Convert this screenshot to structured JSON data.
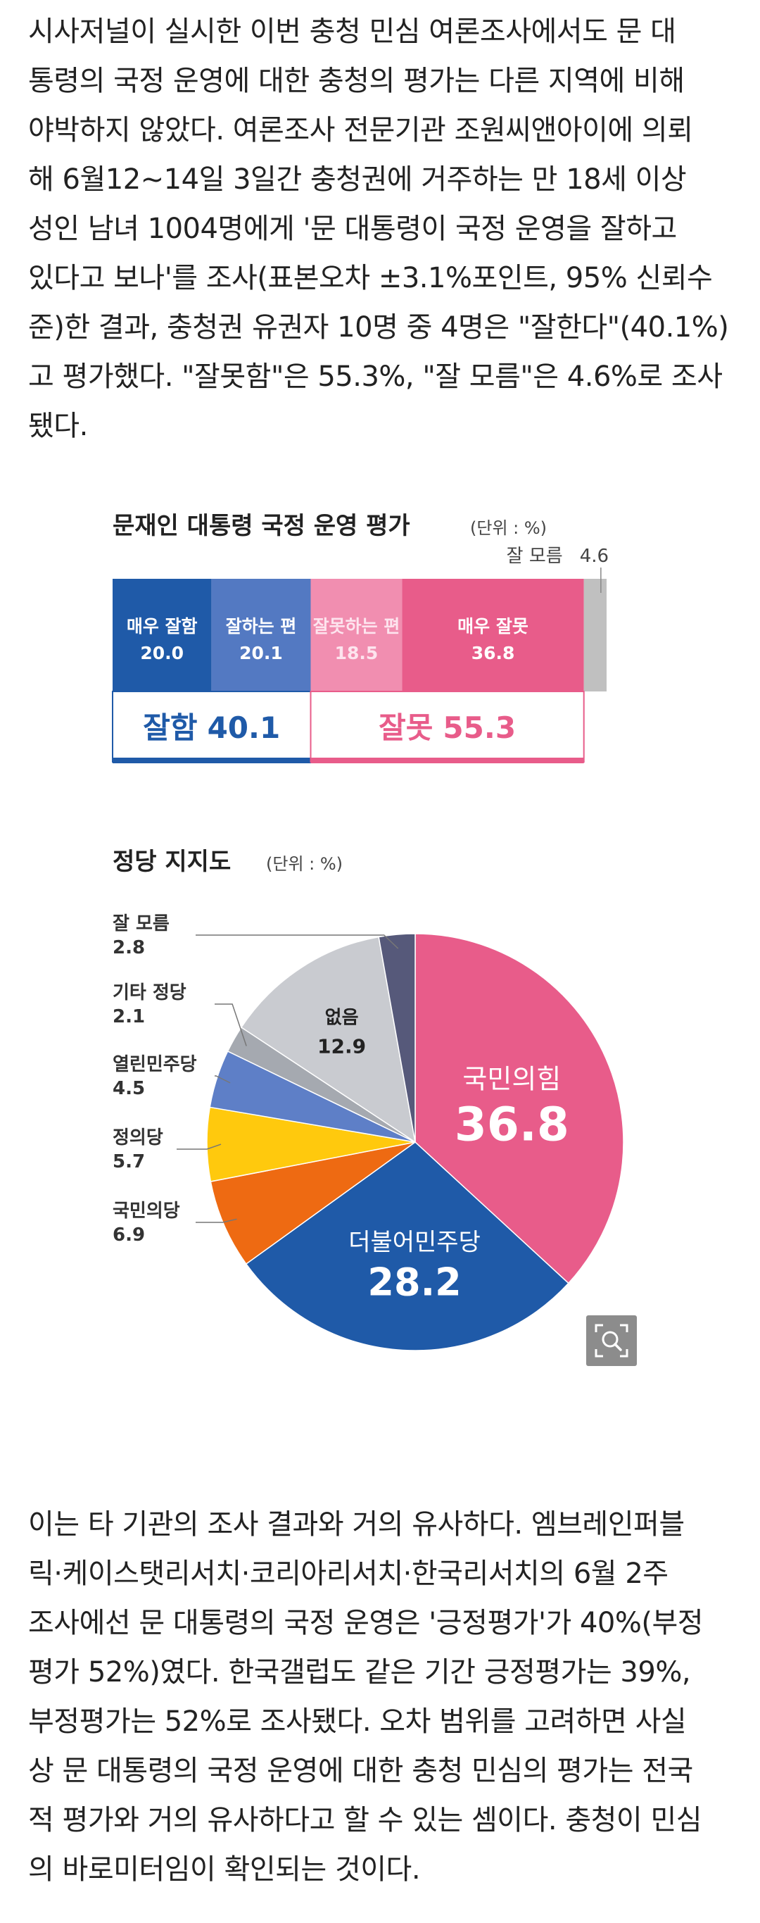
{
  "article": {
    "paragraph1": [
      "시사저널이 실시한 이번 충청 민심 여론조사에서도 문 대",
      "통령의 국정 운영에 대한 충청의 평가는 다른 지역에 비해",
      "야박하지 않았다. 여론조사 전문기관 조원씨앤아이에 의뢰",
      "해 6월12~14일 3일간 충청권에 거주하는 만 18세 이상",
      "성인 남녀 1004명에게 '문 대통령이 국정 운영을 잘하고",
      "있다고 보나'를 조사(표본오차 ±3.1%포인트, 95% 신뢰수",
      "준)한 결과, 충청권 유권자 10명 중 4명은 \"잘한다\"(40.1%)",
      "고 평가했다. \"잘못함\"은 55.3%, \"잘 모름\"은 4.6%로 조사",
      "됐다."
    ],
    "paragraph2": [
      "이는 타 기관의 조사 결과와 거의 유사하다. 엠브레인퍼블",
      "릭·케이스탯리서치·코리아리서치·한국리서치의 6월 2주",
      "조사에선 문 대통령의 국정 운영은 '긍정평가'가 40%(부정",
      "평가 52%)였다. 한국갤럽도 같은 기간 긍정평가는 39%,",
      "부정평가는 52%로 조사됐다. 오차 범위를 고려하면 사실",
      "상 문 대통령의 국정 운영에 대한 충청 민심의 평가는 전국",
      "적 평가와 거의 유사하다고 할 수 있는 셈이다. 충청이 민심",
      "의 바로미터임이 확인되는 것이다."
    ]
  },
  "chart_data": [
    {
      "type": "bar",
      "title": "문재인 대통령 국정 운영 평가",
      "unit_label": "(단위 : %)",
      "categories": [
        "매우 잘함",
        "잘하는 편",
        "잘못하는 편",
        "매우 잘못",
        "잘 모름"
      ],
      "values": [
        20.0,
        20.1,
        18.5,
        36.8,
        4.6
      ],
      "value_labels": [
        "20.0",
        "20.1",
        "18.5",
        "36.8",
        "4.6"
      ],
      "colors": [
        "#1f5aa8",
        "#5379c2",
        "#f18eb0",
        "#e85c8a",
        "#c0c0c0"
      ],
      "groups": [
        {
          "label": "잘함",
          "value": "40.1",
          "color": "#1f5aa8",
          "span": [
            0,
            1
          ]
        },
        {
          "label": "잘못",
          "value": "55.3",
          "color": "#e85c8a",
          "span": [
            2,
            3
          ]
        }
      ]
    },
    {
      "type": "pie",
      "title": "정당 지지도",
      "unit_label": "(단위 : %)",
      "slices": [
        {
          "name": "국민의힘",
          "value": 36.8,
          "label": "36.8",
          "color": "#e85c8a"
        },
        {
          "name": "더불어민주당",
          "value": 28.2,
          "label": "28.2",
          "color": "#1f5aa8"
        },
        {
          "name": "국민의당",
          "value": 6.9,
          "label": "6.9",
          "color": "#ee6a12"
        },
        {
          "name": "정의당",
          "value": 5.7,
          "label": "5.7",
          "color": "#ffc90d"
        },
        {
          "name": "열린민주당",
          "value": 4.5,
          "label": "4.5",
          "color": "#5e7fc7"
        },
        {
          "name": "기타 정당",
          "value": 2.1,
          "label": "2.1",
          "color": "#a5a9b0"
        },
        {
          "name": "없음",
          "value": 12.9,
          "label": "12.9",
          "color": "#c9cbd0"
        },
        {
          "name": "잘 모름",
          "value": 2.8,
          "label": "2.8",
          "color": "#56597a"
        }
      ]
    }
  ],
  "ui": {
    "zoom_icon": "zoom-icon"
  }
}
